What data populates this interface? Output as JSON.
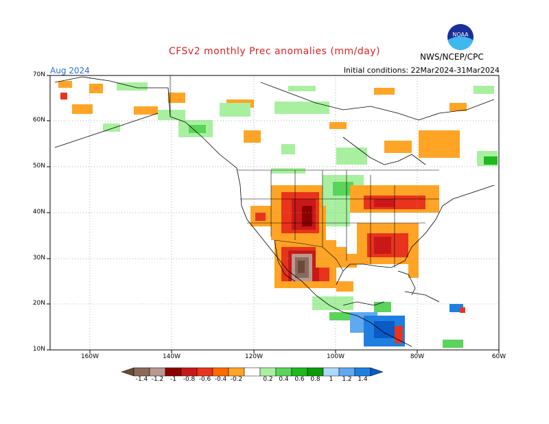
{
  "header": {
    "title": "CFSv2 monthly Prec anomalies (mm/day)",
    "month": "Aug 2024",
    "initial_conditions": "Initial conditions: 22Mar2024-31Mar2024",
    "agency": "NWS/NCEP/CPC",
    "logo_text": "NOAA"
  },
  "axes": {
    "lat_labels": [
      "70N",
      "60N",
      "50N",
      "40N",
      "30N",
      "20N",
      "10N"
    ],
    "lon_labels": [
      "160W",
      "140W",
      "120W",
      "100W",
      "80W",
      "60W"
    ]
  },
  "colorbar": {
    "labels": [
      "-1.4",
      "-1.2",
      "-1",
      "-0.8",
      "-0.6",
      "-0.4",
      "-0.2",
      "0.2",
      "0.4",
      "0.6",
      "0.8",
      "1",
      "1.2",
      "1.4"
    ],
    "colors": [
      "#6b4a3a",
      "#8a6a5a",
      "#b89890",
      "#8b0000",
      "#c81818",
      "#e8341c",
      "#ff6a00",
      "#ffa424",
      "#ffffff",
      "#a8f0a0",
      "#5ad45a",
      "#1fb81f",
      "#0a9a0a",
      "#b0d8ff",
      "#60a8f0",
      "#1e7fe0",
      "#0a5ac8"
    ]
  }
}
